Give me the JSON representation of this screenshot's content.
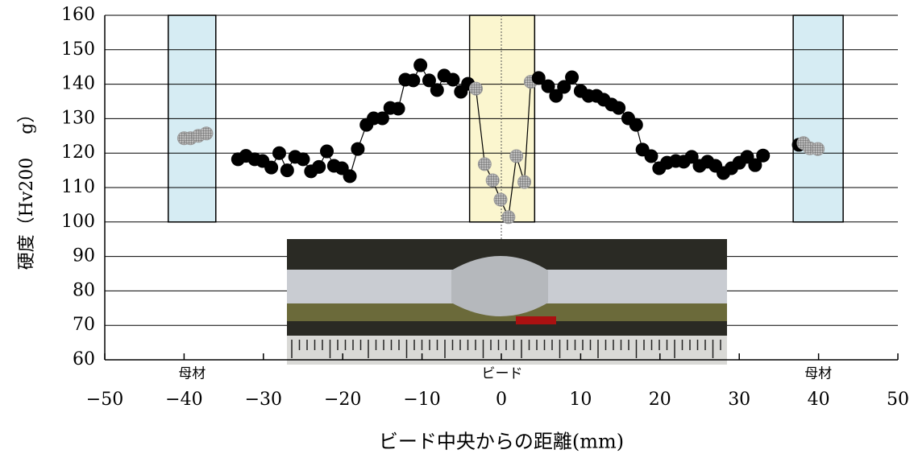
{
  "chart_data": {
    "type": "scatter",
    "xlabel": "ビード中央からの距離(mm)",
    "ylabel": "硬度（Hv200　 g）",
    "xlim": [
      -50,
      50
    ],
    "xticks": [
      {
        "value": -50,
        "label": "−50"
      },
      {
        "value": -40,
        "label": "−40"
      },
      {
        "value": -30,
        "label": "−30"
      },
      {
        "value": -20,
        "label": "−20"
      },
      {
        "value": -10,
        "label": "−10"
      },
      0,
      10,
      20,
      30,
      40,
      50
    ],
    "ylim": [
      60,
      160
    ],
    "yticks": [
      60,
      70,
      80,
      90,
      100,
      110,
      120,
      130,
      140,
      150,
      160
    ],
    "grid": true,
    "regions": [
      {
        "label": "母材",
        "x": [
          -42,
          -36
        ],
        "y": [
          100,
          160
        ],
        "color": "#d6ecf3"
      },
      {
        "label": "ビード",
        "x": [
          -4,
          4.2
        ],
        "y": [
          100,
          160
        ],
        "color": "#fbf6cf"
      },
      {
        "label": "母材",
        "x": [
          36.8,
          43.1
        ],
        "y": [
          100,
          160
        ],
        "color": "#d6ecf3"
      }
    ],
    "series": [
      {
        "color": "#000000",
        "line": true,
        "x": [
          -33.2,
          -32.2,
          -31.1,
          -30.1,
          -29,
          -28,
          -27,
          -26,
          -25,
          -24,
          -23,
          -22,
          -21.1,
          -20.1,
          -19.1,
          -18.1,
          -17,
          -16.1,
          -15,
          -14,
          -13,
          -12.1,
          -11.1,
          -10.2,
          -9.1,
          -8.1,
          -7.2,
          -6.1,
          -5.1,
          -4.2
        ],
        "values": [
          118.2,
          119.2,
          118.2,
          117.7,
          115.8,
          120,
          115,
          118.9,
          118.2,
          114.7,
          116,
          120.5,
          116.3,
          115.6,
          113.3,
          121.2,
          128.2,
          130.1,
          130.1,
          133.1,
          132.9,
          141.3,
          141.1,
          145.5,
          141.1,
          138.3,
          142.5,
          141.3,
          137.8,
          140.1
        ]
      },
      {
        "color": "#888888",
        "line": true,
        "x": [
          -3.2,
          -2.1,
          -1.1,
          -0.1,
          0.9,
          1.9,
          2.9,
          3.7
        ],
        "values": [
          138.7,
          116.8,
          112.1,
          106.5,
          101.4,
          119.1,
          111.6,
          140.7
        ]
      },
      {
        "color": "#000000",
        "line": true,
        "x": [
          4.7,
          5.9,
          6.9,
          7.9,
          8.9,
          10,
          11,
          12,
          12.9,
          13.9,
          14.8,
          16,
          17,
          17.8,
          18.9,
          19.9,
          20.9,
          22,
          23,
          24,
          25,
          26,
          27,
          28,
          29,
          30,
          31,
          32,
          33
        ],
        "values": [
          141.8,
          139.4,
          136.6,
          139.2,
          142,
          138,
          136.6,
          136.6,
          135.5,
          134.1,
          133.1,
          130.1,
          128.2,
          121,
          119.1,
          115.6,
          117.2,
          117.7,
          117.5,
          118.9,
          116.3,
          117.5,
          116.3,
          114.2,
          115.6,
          117.2,
          118.9,
          116.5,
          119.3
        ]
      },
      {
        "color": "#888888",
        "line": false,
        "x": [
          -40,
          -39.2,
          -38.2,
          -37.2
        ],
        "values": [
          124.3,
          124.3,
          125,
          125.7
        ]
      },
      {
        "color": "#000000",
        "line": false,
        "x": [
          37.5
        ],
        "values": [
          122.4
        ]
      },
      {
        "color": "#888888",
        "line": false,
        "x": [
          38.1,
          38.9,
          39.9
        ],
        "values": [
          122.9,
          121.4,
          121.2
        ]
      }
    ]
  }
}
